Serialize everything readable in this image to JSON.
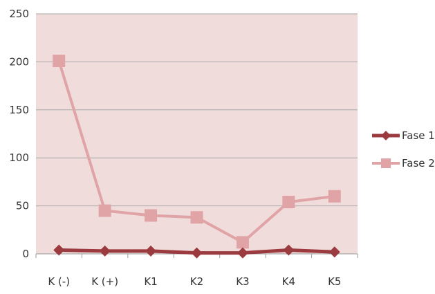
{
  "chart_data": {
    "type": "line",
    "categories": [
      "K (-)",
      "K (+)",
      "K1",
      "K2",
      "K3",
      "K4",
      "K5"
    ],
    "series": [
      {
        "name": "Fase 1",
        "values": [
          4,
          3,
          3,
          1,
          1,
          4,
          2
        ],
        "color": "#9b3a3f",
        "marker": "diamond"
      },
      {
        "name": "Fase 2",
        "values": [
          201,
          45,
          40,
          38,
          12,
          54,
          60
        ],
        "color": "#e0a3a6",
        "marker": "square"
      }
    ],
    "y_ticks": [
      "0",
      "50",
      "100",
      "150",
      "200",
      "250"
    ],
    "ylim": [
      0,
      250
    ],
    "grid": true,
    "plot_background": "#f1dcdc",
    "gridline_color": "#a8a8a8",
    "legend_position": "right"
  }
}
